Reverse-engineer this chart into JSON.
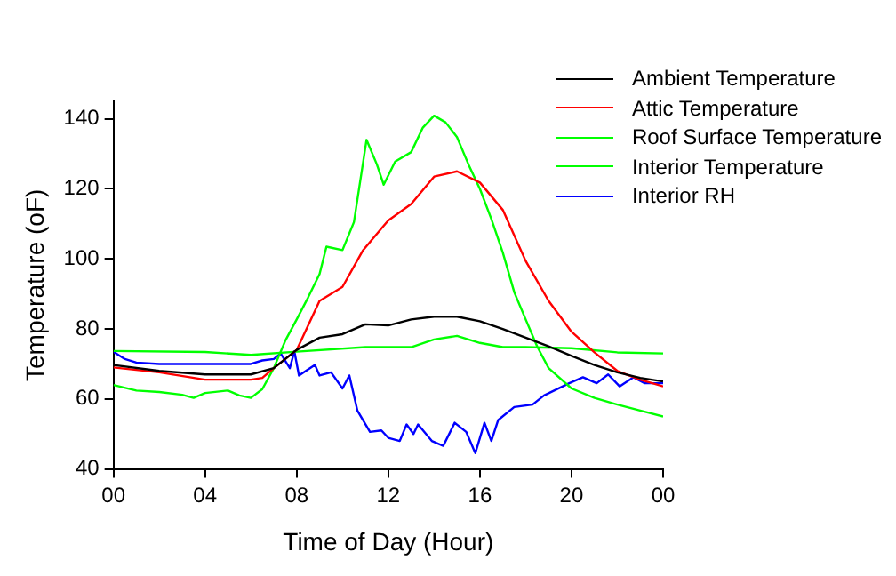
{
  "chart_data": {
    "type": "line",
    "xlabel": "Time of Day (Hour)",
    "ylabel": "Temperature (oF)",
    "xlim": [
      0,
      24
    ],
    "xticks": [
      {
        "value": 0,
        "label": "00"
      },
      {
        "value": 4,
        "label": "04"
      },
      {
        "value": 8,
        "label": "08"
      },
      {
        "value": 12,
        "label": "12"
      },
      {
        "value": 16,
        "label": "16"
      },
      {
        "value": 20,
        "label": "20"
      },
      {
        "value": 24,
        "label": "00"
      }
    ],
    "ylim": [
      40,
      145
    ],
    "yticks": [
      40,
      60,
      80,
      100,
      120,
      140
    ],
    "grid": false,
    "legend": "top right",
    "marker": "none",
    "line_style": "solid",
    "series": [
      {
        "name": "Ambient Temperature",
        "color": "#000000",
        "x": [
          0,
          2,
          4,
          6,
          7,
          8,
          9,
          10,
          11,
          12,
          13,
          14,
          15,
          16,
          17,
          18,
          19,
          20,
          21,
          22,
          23,
          24
        ],
        "values": [
          69.7,
          68,
          67,
          67,
          68.8,
          74,
          77.5,
          78.5,
          81.3,
          81,
          82.7,
          83.5,
          83.5,
          82.2,
          80,
          77.5,
          75,
          72.3,
          69.7,
          67.6,
          66,
          65
        ]
      },
      {
        "name": "Attic Temperature",
        "color": "#ff0000",
        "x": [
          0,
          2,
          4,
          6,
          6.5,
          7,
          7.5,
          8,
          9,
          10,
          10.9,
          12,
          13,
          14,
          15,
          16,
          17,
          18,
          19,
          20,
          21,
          22,
          23,
          24
        ],
        "values": [
          69,
          67.6,
          65.5,
          65.5,
          66,
          68.8,
          71.4,
          74,
          88,
          92,
          102.5,
          111,
          115.7,
          123.5,
          125,
          121.8,
          114,
          99.4,
          88,
          79.2,
          73.3,
          68,
          65.5,
          63.6
        ]
      },
      {
        "name": "Roof Surface Temperature",
        "color": "#00ff00",
        "x": [
          0,
          1,
          2,
          3,
          3.5,
          4,
          5,
          5.5,
          6,
          6.5,
          7,
          7.5,
          8,
          8.5,
          9,
          9.3,
          10,
          10.5,
          11.05,
          11.5,
          11.8,
          12.3,
          13,
          13.5,
          14,
          14.5,
          15,
          15.5,
          16,
          16.5,
          17,
          17.5,
          18,
          18.5,
          19,
          20,
          21,
          22,
          23,
          24
        ],
        "values": [
          64,
          62.4,
          62,
          61.2,
          60.3,
          61.7,
          62.4,
          61,
          60.3,
          62.8,
          68.8,
          76.6,
          82.7,
          89,
          95.7,
          103.5,
          102.5,
          110.5,
          134,
          127,
          121.2,
          127.8,
          130.5,
          137.4,
          140.9,
          139,
          134.8,
          127,
          120,
          111.4,
          101.8,
          90.5,
          82.7,
          75,
          68.8,
          63,
          60.3,
          58.4,
          56.7,
          55
        ]
      },
      {
        "name": "Interior Temperature",
        "color": "#00ff00",
        "x": [
          0,
          4,
          6,
          8,
          11,
          12,
          13,
          14,
          15,
          16,
          17,
          18,
          20,
          22,
          24
        ],
        "values": [
          73.7,
          73.4,
          72.6,
          73.5,
          74.8,
          74.8,
          74.8,
          77,
          78,
          76,
          74.8,
          74.8,
          74.5,
          73.3,
          73
        ]
      },
      {
        "name": "Interior RH",
        "color": "#0000ff",
        "x": [
          0,
          0.5,
          1,
          2,
          4,
          6,
          6.5,
          7,
          7.3,
          7.7,
          7.9,
          8.1,
          8.4,
          8.8,
          9,
          9.5,
          10,
          10.3,
          10.65,
          11.2,
          11.7,
          12,
          12.5,
          12.8,
          13.1,
          13.3,
          13.9,
          14.4,
          14.9,
          15.4,
          15.8,
          16.2,
          16.5,
          16.8,
          17.5,
          18.3,
          18.8,
          19.9,
          20.5,
          21.1,
          21.6,
          22.1,
          22.7,
          23.2,
          24
        ],
        "values": [
          73.5,
          71.4,
          70.4,
          70,
          70,
          70,
          71,
          71.4,
          73,
          68.8,
          73.6,
          66.7,
          68,
          69.7,
          66.7,
          67.6,
          63,
          66.7,
          56.7,
          50.6,
          51,
          48.9,
          48,
          52.7,
          50,
          52.7,
          48,
          46.6,
          53.2,
          50.6,
          44.5,
          53.2,
          48,
          54,
          57.7,
          58.4,
          61,
          64.5,
          66.2,
          64.5,
          67,
          63.6,
          66.2,
          64.5,
          64.5
        ]
      }
    ]
  }
}
